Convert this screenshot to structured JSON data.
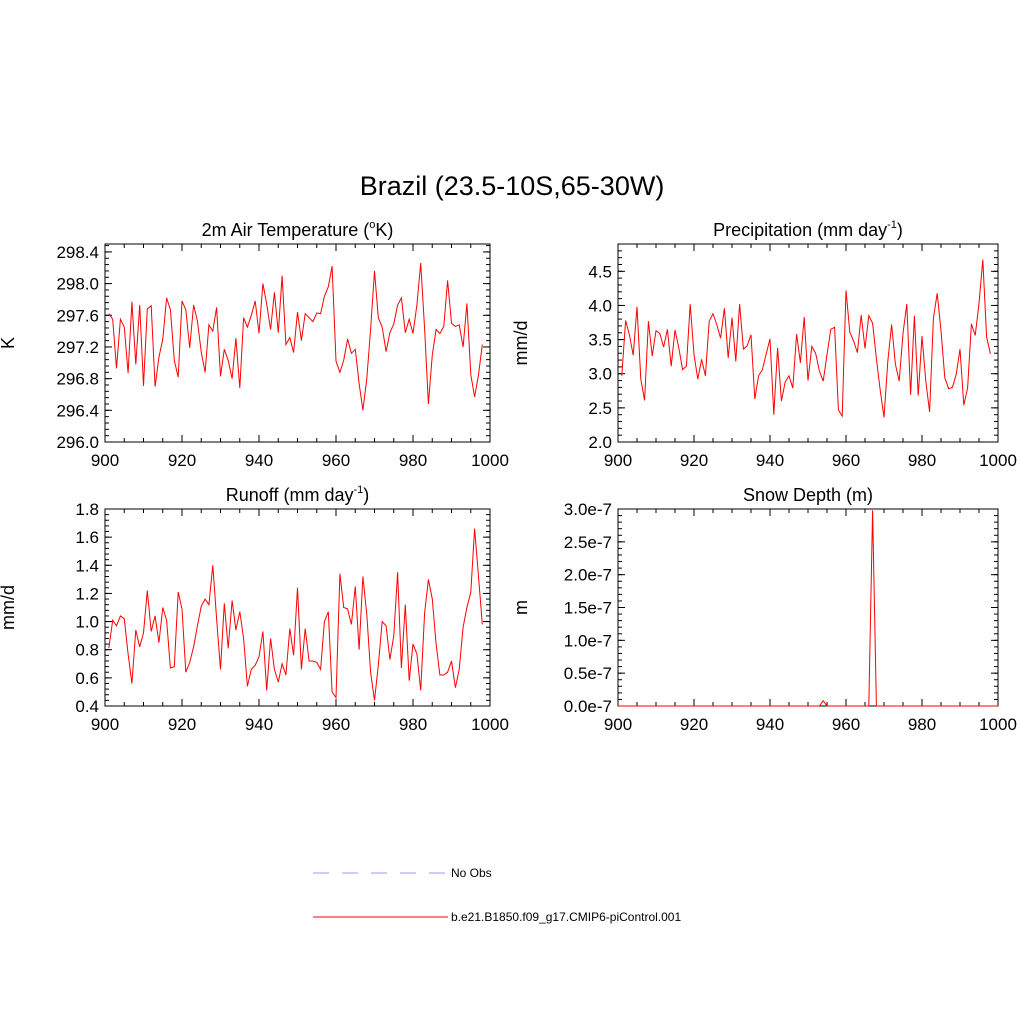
{
  "title": "Brazil (23.5-10S,65-30W)",
  "legend": {
    "obs_label": "No Obs",
    "obs_color": "#9999ff",
    "model_label": "b.e21.B1850.f09_g17.CMIP6-piControl.001",
    "model_color": "#ff0000"
  },
  "chart_data": [
    {
      "type": "line",
      "title": "2m Air Temperature (",
      "title_sup": "o",
      "title_suffix": "K)",
      "ylabel": "K",
      "xlim": [
        900,
        1000
      ],
      "ylim": [
        296.0,
        298.5
      ],
      "x_ticks": [
        900,
        920,
        940,
        960,
        980,
        1000
      ],
      "x_tick_labels": [
        "900",
        "920",
        "940",
        "960",
        "980",
        "1000"
      ],
      "y_ticks": [
        296.0,
        296.4,
        296.8,
        297.2,
        297.6,
        298.0,
        298.4
      ],
      "y_tick_labels": [
        "296.0",
        "296.4",
        "296.8",
        "297.2",
        "297.6",
        "298.0",
        "298.4"
      ],
      "series": [
        {
          "color": "#ff0000",
          "x": [
            901,
            902,
            903,
            904,
            905,
            906,
            907,
            908,
            909,
            910,
            911,
            912,
            913,
            914,
            915,
            916,
            917,
            918,
            919,
            920,
            921,
            922,
            923,
            924,
            925,
            926,
            927,
            928,
            929,
            930,
            931,
            932,
            933,
            934,
            935,
            936,
            937,
            938,
            939,
            940,
            941,
            942,
            943,
            944,
            945,
            946,
            947,
            948,
            949,
            950,
            951,
            952,
            953,
            954,
            955,
            956,
            957,
            958,
            959,
            960,
            961,
            962,
            963,
            964,
            965,
            966,
            967,
            968,
            969,
            970,
            971,
            972,
            973,
            974,
            975,
            976,
            977,
            978,
            979,
            980,
            981,
            982,
            983,
            984,
            985,
            986,
            987,
            988,
            989,
            990,
            991,
            992,
            993,
            994,
            995,
            996,
            997,
            998
          ],
          "values": [
            297.62,
            297.55,
            296.93,
            297.55,
            297.45,
            296.87,
            297.77,
            296.98,
            297.73,
            296.71,
            297.68,
            297.72,
            296.7,
            297.07,
            297.3,
            297.82,
            297.67,
            297.03,
            296.82,
            297.78,
            297.67,
            297.19,
            297.73,
            297.53,
            297.13,
            296.88,
            297.48,
            297.4,
            297.7,
            296.83,
            297.17,
            297.03,
            296.8,
            297.31,
            296.68,
            297.57,
            297.45,
            297.6,
            297.78,
            297.37,
            298.0,
            297.74,
            297.42,
            297.89,
            297.38,
            298.1,
            297.23,
            297.32,
            297.13,
            297.64,
            297.28,
            297.62,
            297.57,
            297.52,
            297.63,
            297.62,
            297.84,
            297.96,
            298.22,
            297.02,
            296.88,
            297.03,
            297.3,
            297.12,
            297.17,
            296.74,
            296.4,
            296.8,
            297.42,
            298.16,
            297.57,
            297.45,
            297.14,
            297.38,
            297.49,
            297.73,
            297.82,
            297.38,
            297.55,
            297.37,
            297.73,
            298.26,
            297.43,
            296.48,
            297.1,
            297.42,
            297.37,
            297.46,
            298.04,
            297.5,
            297.46,
            297.48,
            297.2,
            297.75,
            296.85,
            296.57,
            296.84,
            297.23
          ]
        }
      ]
    },
    {
      "type": "line",
      "title": "Precipitation (mm day",
      "title_sup": "-1",
      "title_suffix": ")",
      "ylabel": "mm/d",
      "xlim": [
        900,
        1000
      ],
      "ylim": [
        2.0,
        4.9
      ],
      "x_ticks": [
        900,
        920,
        940,
        960,
        980,
        1000
      ],
      "x_tick_labels": [
        "900",
        "920",
        "940",
        "960",
        "980",
        "1000"
      ],
      "y_ticks": [
        2.0,
        2.5,
        3.0,
        3.5,
        4.0,
        4.5
      ],
      "y_tick_labels": [
        "2.0",
        "2.5",
        "3.0",
        "3.5",
        "4.0",
        "4.5"
      ],
      "series": [
        {
          "color": "#ff0000",
          "x": [
            901,
            902,
            903,
            904,
            905,
            906,
            907,
            908,
            909,
            910,
            911,
            912,
            913,
            914,
            915,
            916,
            917,
            918,
            919,
            920,
            921,
            922,
            923,
            924,
            925,
            926,
            927,
            928,
            929,
            930,
            931,
            932,
            933,
            934,
            935,
            936,
            937,
            938,
            939,
            940,
            941,
            942,
            943,
            944,
            945,
            946,
            947,
            948,
            949,
            950,
            951,
            952,
            953,
            954,
            955,
            956,
            957,
            958,
            959,
            960,
            961,
            962,
            963,
            964,
            965,
            966,
            967,
            968,
            969,
            970,
            971,
            972,
            973,
            974,
            975,
            976,
            977,
            978,
            979,
            980,
            981,
            982,
            983,
            984,
            985,
            986,
            987,
            988,
            989,
            990,
            991,
            992,
            993,
            994,
            995,
            996,
            997,
            998
          ],
          "values": [
            2.97,
            3.78,
            3.57,
            3.27,
            3.98,
            2.92,
            2.61,
            3.77,
            3.26,
            3.63,
            3.59,
            3.39,
            3.65,
            3.11,
            3.64,
            3.38,
            3.06,
            3.11,
            4.02,
            3.28,
            2.92,
            3.21,
            2.97,
            3.77,
            3.88,
            3.72,
            3.52,
            3.96,
            3.23,
            3.82,
            3.18,
            4.02,
            3.36,
            3.41,
            3.57,
            2.63,
            2.97,
            3.06,
            3.29,
            3.51,
            2.4,
            3.38,
            2.6,
            2.88,
            2.97,
            2.79,
            3.58,
            3.16,
            3.83,
            2.9,
            3.4,
            3.3,
            3.04,
            2.89,
            3.28,
            3.65,
            3.68,
            2.47,
            2.38,
            4.22,
            3.61,
            3.48,
            3.31,
            3.86,
            3.37,
            3.85,
            3.74,
            3.22,
            2.76,
            2.36,
            3.18,
            3.72,
            3.14,
            2.89,
            3.59,
            4.02,
            2.69,
            3.85,
            2.68,
            3.55,
            2.89,
            2.44,
            3.81,
            4.18,
            3.63,
            2.94,
            2.78,
            2.8,
            2.99,
            3.36,
            2.54,
            2.79,
            3.73,
            3.56,
            4.03,
            4.67,
            3.54,
            3.29
          ]
        }
      ]
    },
    {
      "type": "line",
      "title": "Runoff (mm day",
      "title_sup": "-1",
      "title_suffix": ")",
      "ylabel": "mm/d",
      "xlim": [
        900,
        1000
      ],
      "ylim": [
        0.4,
        1.8
      ],
      "x_ticks": [
        900,
        920,
        940,
        960,
        980,
        1000
      ],
      "x_tick_labels": [
        "900",
        "920",
        "940",
        "960",
        "980",
        "1000"
      ],
      "y_ticks": [
        0.4,
        0.6,
        0.8,
        1.0,
        1.2,
        1.4,
        1.6,
        1.8
      ],
      "y_tick_labels": [
        "0.4",
        "0.6",
        "0.8",
        "1.0",
        "1.2",
        "1.4",
        "1.6",
        "1.8"
      ],
      "series": [
        {
          "color": "#ff0000",
          "x": [
            901,
            902,
            903,
            904,
            905,
            906,
            907,
            908,
            909,
            910,
            911,
            912,
            913,
            914,
            915,
            916,
            917,
            918,
            919,
            920,
            921,
            922,
            923,
            924,
            925,
            926,
            927,
            928,
            929,
            930,
            931,
            932,
            933,
            934,
            935,
            936,
            937,
            938,
            939,
            940,
            941,
            942,
            943,
            944,
            945,
            946,
            947,
            948,
            949,
            950,
            951,
            952,
            953,
            954,
            955,
            956,
            957,
            958,
            959,
            960,
            961,
            962,
            963,
            964,
            965,
            966,
            967,
            968,
            969,
            970,
            971,
            972,
            973,
            974,
            975,
            976,
            977,
            978,
            979,
            980,
            981,
            982,
            983,
            984,
            985,
            986,
            987,
            988,
            989,
            990,
            991,
            992,
            993,
            994,
            995,
            996,
            997,
            998
          ],
          "values": [
            0.81,
            1.01,
            0.97,
            1.04,
            1.02,
            0.77,
            0.56,
            0.94,
            0.82,
            0.92,
            1.22,
            0.93,
            1.04,
            0.85,
            1.1,
            1.01,
            0.67,
            0.68,
            1.21,
            1.09,
            0.64,
            0.71,
            0.82,
            0.97,
            1.11,
            1.16,
            1.12,
            1.4,
            1.02,
            0.66,
            1.13,
            0.81,
            1.15,
            0.94,
            1.07,
            0.88,
            0.54,
            0.66,
            0.69,
            0.75,
            0.93,
            0.51,
            0.88,
            0.66,
            0.57,
            0.7,
            0.62,
            0.95,
            0.76,
            1.24,
            0.66,
            0.95,
            0.72,
            0.72,
            0.71,
            0.66,
            1.0,
            1.07,
            0.5,
            0.46,
            1.34,
            1.1,
            1.09,
            0.98,
            1.25,
            0.8,
            1.32,
            1.05,
            0.64,
            0.44,
            0.69,
            1.0,
            0.97,
            0.73,
            0.9,
            1.35,
            0.67,
            1.12,
            0.58,
            0.84,
            0.77,
            0.51,
            1.06,
            1.3,
            1.16,
            0.84,
            0.62,
            0.62,
            0.64,
            0.72,
            0.53,
            0.66,
            0.96,
            1.1,
            1.21,
            1.66,
            1.33,
            0.98
          ]
        }
      ]
    },
    {
      "type": "line",
      "title": "Snow Depth (m)",
      "title_sup": "",
      "title_suffix": "",
      "ylabel": "m",
      "xlim": [
        900,
        1000
      ],
      "ylim": [
        0,
        3e-07
      ],
      "x_ticks": [
        900,
        920,
        940,
        960,
        980,
        1000
      ],
      "x_tick_labels": [
        "900",
        "920",
        "940",
        "960",
        "980",
        "1000"
      ],
      "y_ticks": [
        0,
        5e-08,
        1e-07,
        1.5e-07,
        2e-07,
        2.5e-07,
        3e-07
      ],
      "y_tick_labels": [
        "0.0e-7",
        "0.5e-7",
        "1.0e-7",
        "1.5e-7",
        "2.0e-7",
        "2.5e-7",
        "3.0e-7"
      ],
      "series": [
        {
          "color": "#ff0000",
          "x": [
            900,
            953,
            954,
            955,
            966,
            967,
            968,
            1000
          ],
          "values": [
            0,
            0,
            8e-09,
            0,
            0,
            2.98e-07,
            0,
            0
          ]
        }
      ]
    }
  ]
}
